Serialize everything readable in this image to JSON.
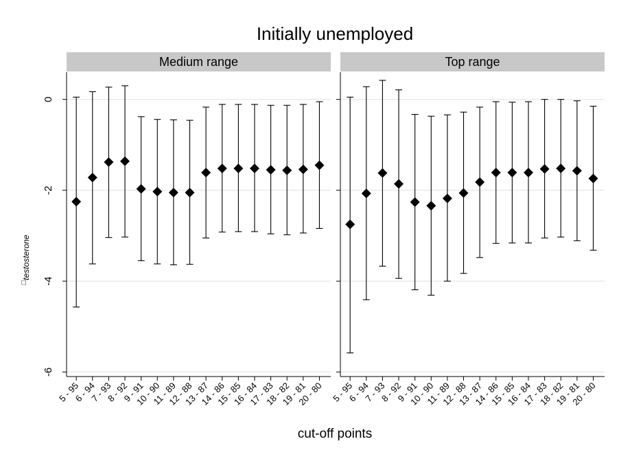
{
  "chart_data": {
    "type": "scatter",
    "subtype": "point-estimates-with-error-bars",
    "title": "Initially unemployed",
    "xlabel": "cut-off points",
    "ylabel_symbol": "□",
    "ylabel_subscript": "testosterone",
    "ylim": [
      -6.1,
      0.6
    ],
    "yticks": [
      0,
      -2,
      -4,
      -6
    ],
    "ytick_labels": [
      "0",
      "-2",
      "-4",
      "-6"
    ],
    "grid": true,
    "categories": [
      "5 - 95",
      "6 - 94",
      "7 - 93",
      "8 - 92",
      "9 - 91",
      "10 - 90",
      "11 - 89",
      "12 - 88",
      "13 - 87",
      "14 - 86",
      "15 - 85",
      "16 - 84",
      "17 - 83",
      "18 - 82",
      "19 - 81",
      "20 - 80"
    ],
    "panels": [
      {
        "name": "Medium range",
        "estimate": [
          -2.25,
          -1.72,
          -1.38,
          -1.36,
          -1.97,
          -2.03,
          -2.05,
          -2.05,
          -1.61,
          -1.52,
          -1.52,
          -1.52,
          -1.55,
          -1.56,
          -1.54,
          -1.45
        ],
        "ci_low": [
          -4.57,
          -3.62,
          -3.04,
          -3.03,
          -3.55,
          -3.62,
          -3.64,
          -3.63,
          -3.05,
          -2.92,
          -2.91,
          -2.91,
          -2.96,
          -2.98,
          -2.94,
          -2.84
        ],
        "ci_high": [
          0.05,
          0.17,
          0.27,
          0.3,
          -0.38,
          -0.44,
          -0.45,
          -0.46,
          -0.17,
          -0.11,
          -0.11,
          -0.11,
          -0.13,
          -0.13,
          -0.11,
          -0.05
        ]
      },
      {
        "name": "Top range",
        "estimate": [
          -2.75,
          -2.07,
          -1.62,
          -1.86,
          -2.26,
          -2.34,
          -2.18,
          -2.06,
          -1.82,
          -1.61,
          -1.61,
          -1.61,
          -1.53,
          -1.52,
          -1.57,
          -1.74
        ],
        "ci_low": [
          -5.58,
          -4.41,
          -3.67,
          -3.94,
          -4.19,
          -4.31,
          -4.0,
          -3.83,
          -3.48,
          -3.17,
          -3.16,
          -3.16,
          -3.05,
          -3.03,
          -3.11,
          -3.32
        ],
        "ci_high": [
          0.05,
          0.28,
          0.42,
          0.21,
          -0.33,
          -0.37,
          -0.34,
          -0.28,
          -0.17,
          -0.05,
          -0.06,
          -0.05,
          0.0,
          0.0,
          -0.03,
          -0.15
        ]
      }
    ],
    "colors": {
      "background": "#ffffff",
      "panel_header": "#c8c8c8",
      "grid": "#e6e6e6",
      "axis": "#000000",
      "marker": "#000000"
    },
    "marker_shape": "diamond"
  }
}
